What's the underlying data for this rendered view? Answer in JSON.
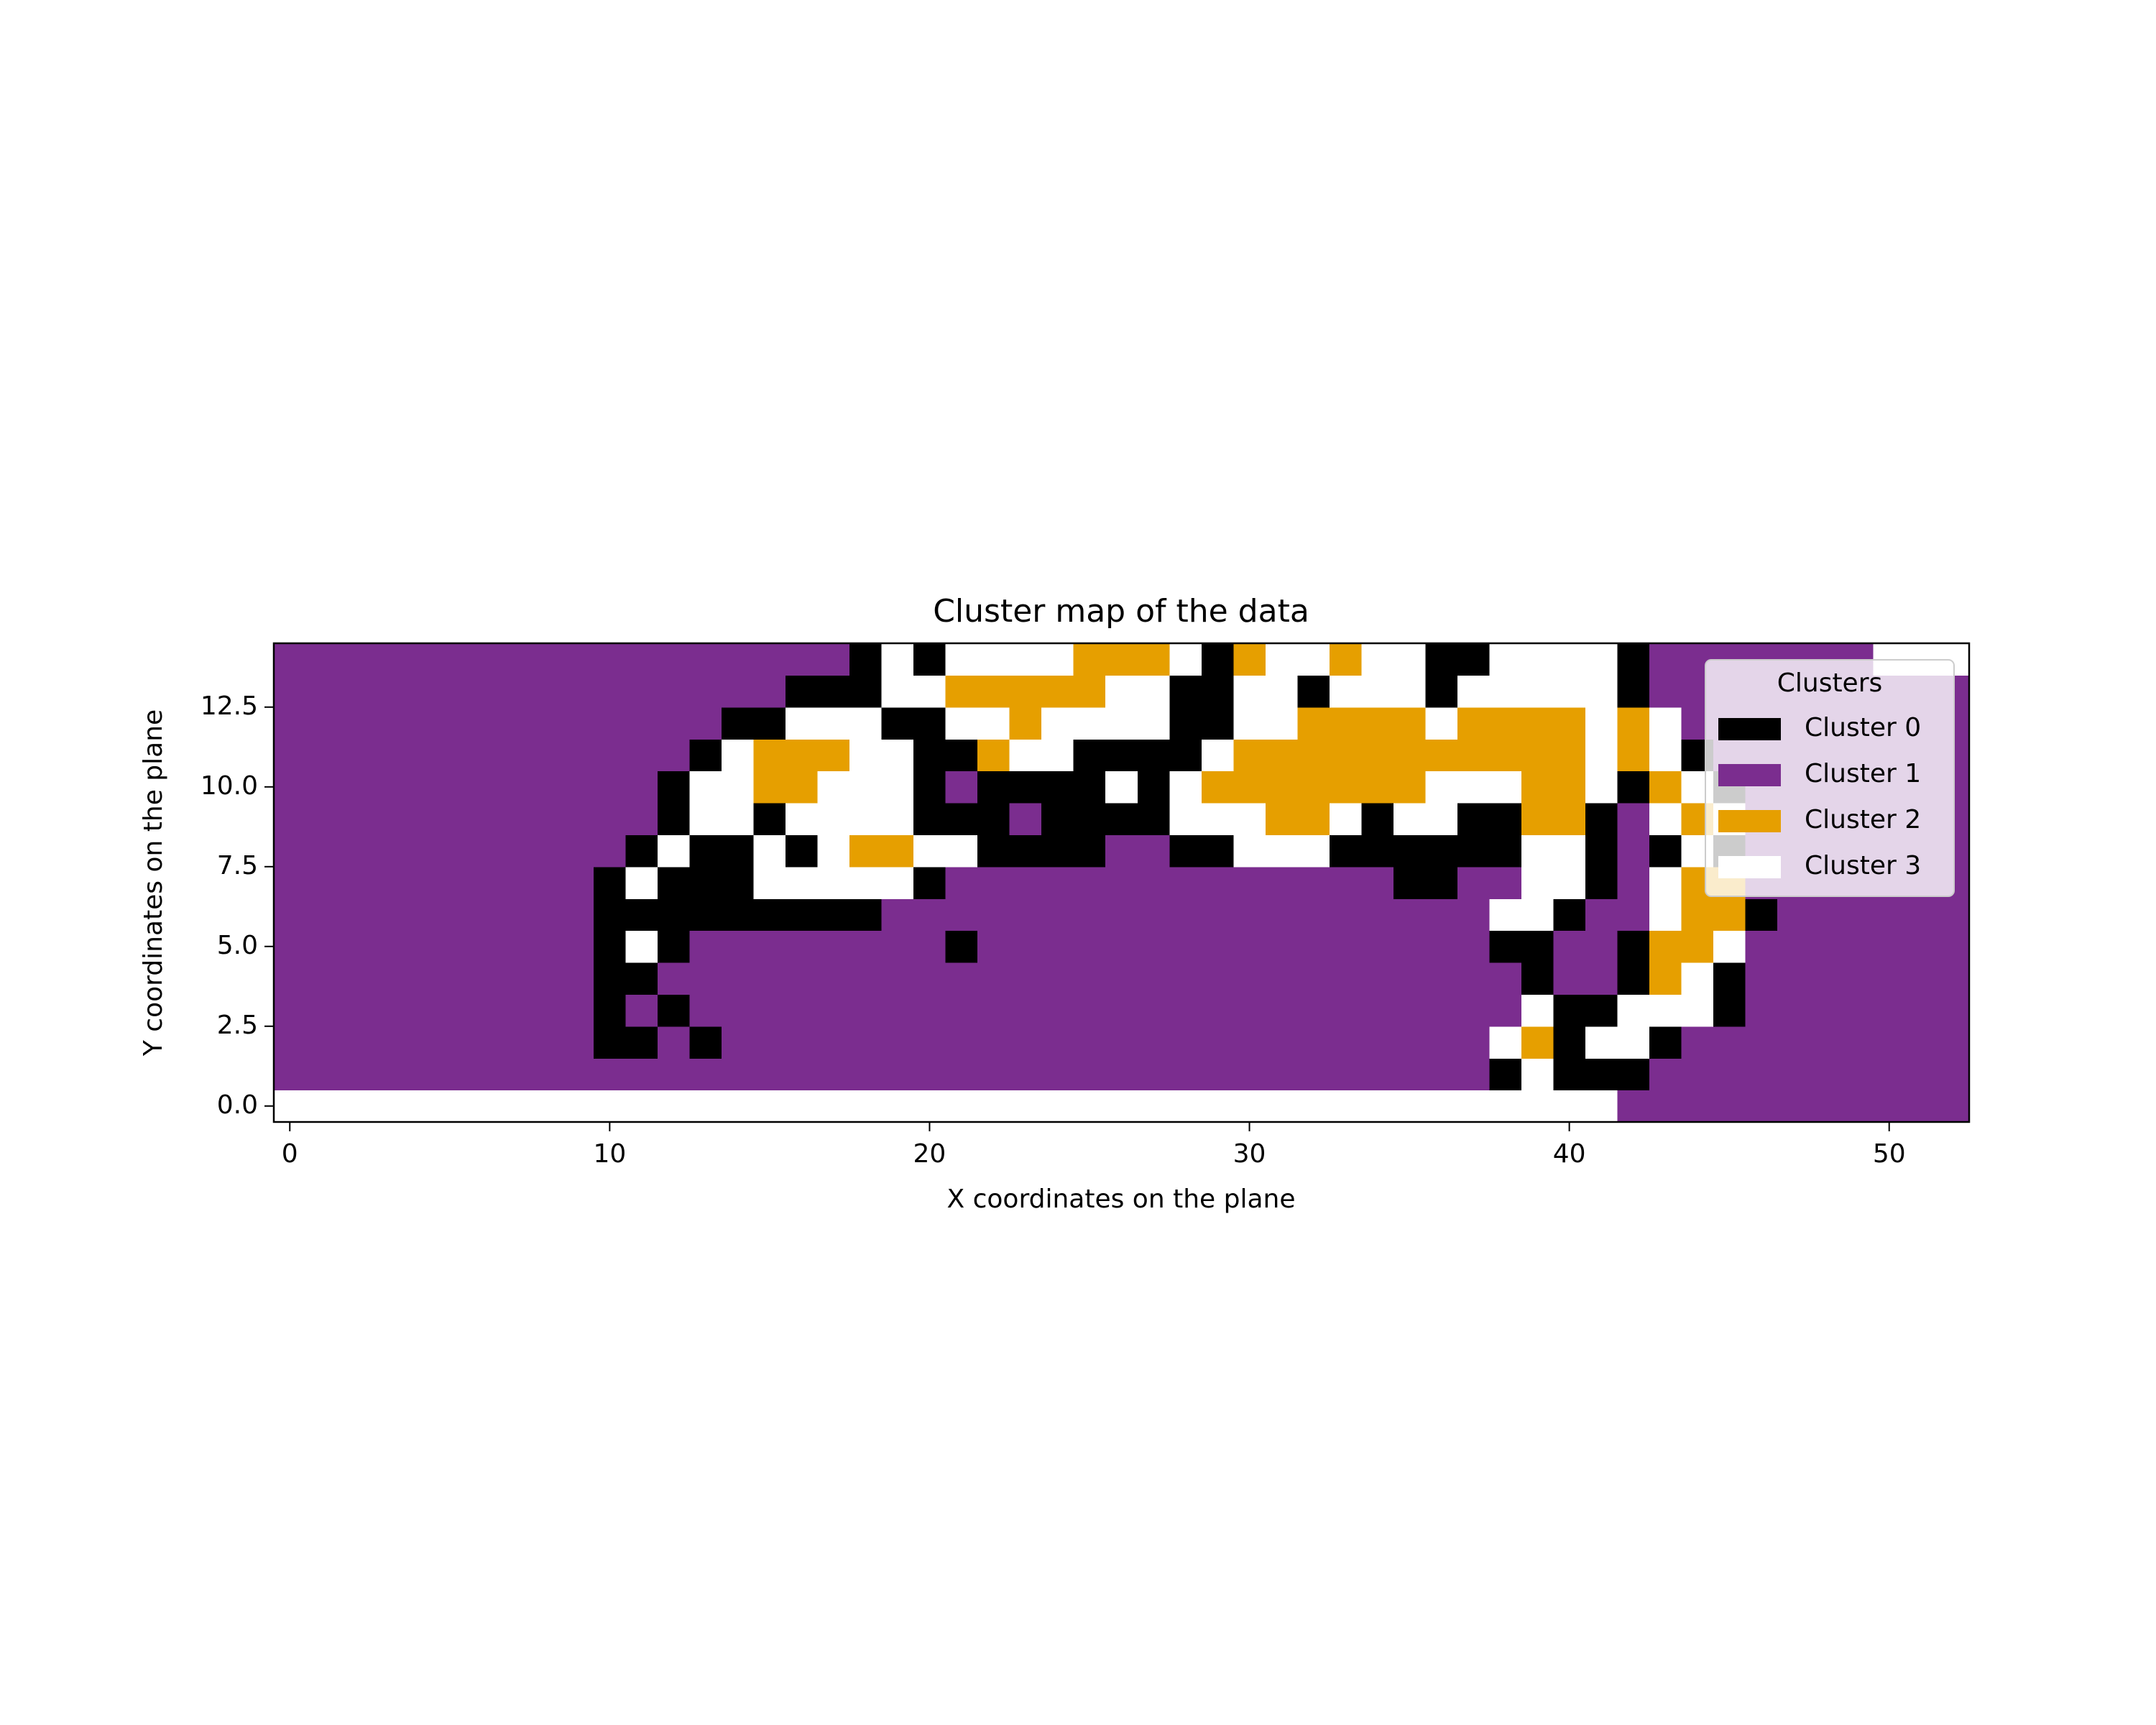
{
  "chart_data": {
    "type": "heatmap",
    "title": "Cluster map of the data",
    "x_label": "X coordinates on the plane",
    "y_label": "Y coordinates on the plane",
    "xlim": [
      -0.5,
      52.5
    ],
    "ylim": [
      -0.5,
      14.5
    ],
    "xticks": [
      0,
      10,
      20,
      30,
      40,
      50
    ],
    "yticks": [
      {
        "value": 0,
        "label": "0.0"
      },
      2.5,
      {
        "value": 5,
        "label": "5.0"
      },
      7.5,
      {
        "value": 10,
        "label": "10.0"
      },
      12.5
    ],
    "legend": {
      "title": "Clusters",
      "position": "upper right"
    },
    "clusters": [
      {
        "name": "Cluster 0",
        "color": "#000000"
      },
      {
        "name": "Cluster 1",
        "color": "#7b2d8f"
      },
      {
        "name": "Cluster 2",
        "color": "#e69f00"
      },
      {
        "name": "Cluster 3",
        "color": "#ffffff"
      }
    ],
    "z": [
      [
        3,
        3,
        3,
        3,
        3,
        3,
        3,
        3,
        3,
        3,
        3,
        3,
        3,
        3,
        3,
        3,
        3,
        3,
        3,
        3,
        3,
        3,
        3,
        3,
        3,
        3,
        3,
        3,
        3,
        3,
        3,
        3,
        3,
        3,
        3,
        3,
        3,
        3,
        3,
        3,
        3,
        3,
        1,
        1,
        1,
        1,
        1,
        1,
        1,
        1,
        1,
        1,
        1
      ],
      [
        1,
        1,
        1,
        1,
        1,
        1,
        1,
        1,
        1,
        1,
        1,
        1,
        1,
        1,
        1,
        1,
        1,
        1,
        1,
        1,
        1,
        1,
        1,
        1,
        1,
        1,
        1,
        1,
        1,
        1,
        1,
        1,
        1,
        1,
        1,
        1,
        1,
        1,
        0,
        3,
        0,
        0,
        0,
        1,
        1,
        1,
        1,
        1,
        1,
        1,
        1,
        1,
        1
      ],
      [
        1,
        1,
        1,
        1,
        1,
        1,
        1,
        1,
        1,
        1,
        0,
        0,
        1,
        0,
        1,
        1,
        1,
        1,
        1,
        1,
        1,
        1,
        1,
        1,
        1,
        1,
        1,
        1,
        1,
        1,
        1,
        1,
        1,
        1,
        1,
        1,
        1,
        1,
        3,
        2,
        0,
        3,
        3,
        0,
        1,
        1,
        1,
        1,
        1,
        1,
        1,
        1,
        1
      ],
      [
        1,
        1,
        1,
        1,
        1,
        1,
        1,
        1,
        1,
        1,
        0,
        1,
        0,
        1,
        1,
        1,
        1,
        1,
        1,
        1,
        1,
        1,
        1,
        1,
        1,
        1,
        1,
        1,
        1,
        1,
        1,
        1,
        1,
        1,
        1,
        1,
        1,
        1,
        1,
        3,
        0,
        0,
        3,
        3,
        3,
        0,
        1,
        1,
        1,
        1,
        1,
        1,
        1
      ],
      [
        1,
        1,
        1,
        1,
        1,
        1,
        1,
        1,
        1,
        1,
        0,
        0,
        1,
        1,
        1,
        1,
        1,
        1,
        1,
        1,
        1,
        1,
        1,
        1,
        1,
        1,
        1,
        1,
        1,
        1,
        1,
        1,
        1,
        1,
        1,
        1,
        1,
        1,
        1,
        0,
        1,
        1,
        0,
        2,
        3,
        0,
        1,
        1,
        1,
        1,
        1,
        1,
        1
      ],
      [
        1,
        1,
        1,
        1,
        1,
        1,
        1,
        1,
        1,
        1,
        0,
        3,
        0,
        1,
        1,
        1,
        1,
        1,
        1,
        1,
        1,
        0,
        1,
        1,
        1,
        1,
        1,
        1,
        1,
        1,
        1,
        1,
        1,
        1,
        1,
        1,
        1,
        1,
        0,
        0,
        1,
        1,
        0,
        2,
        2,
        3,
        1,
        1,
        1,
        1,
        1,
        1,
        1
      ],
      [
        1,
        1,
        1,
        1,
        1,
        1,
        1,
        1,
        1,
        1,
        0,
        0,
        0,
        0,
        0,
        0,
        0,
        0,
        0,
        1,
        1,
        1,
        1,
        1,
        1,
        1,
        1,
        1,
        1,
        1,
        1,
        1,
        1,
        1,
        1,
        1,
        1,
        1,
        3,
        3,
        0,
        1,
        1,
        3,
        2,
        2,
        0,
        1,
        1,
        1,
        1,
        1,
        1
      ],
      [
        1,
        1,
        1,
        1,
        1,
        1,
        1,
        1,
        1,
        1,
        0,
        3,
        0,
        0,
        0,
        3,
        3,
        3,
        3,
        3,
        0,
        1,
        1,
        1,
        1,
        1,
        1,
        1,
        1,
        1,
        1,
        1,
        1,
        1,
        1,
        0,
        0,
        1,
        1,
        3,
        3,
        0,
        1,
        3,
        2,
        2,
        1,
        1,
        1,
        1,
        1,
        1,
        1
      ],
      [
        1,
        1,
        1,
        1,
        1,
        1,
        1,
        1,
        1,
        1,
        1,
        0,
        3,
        0,
        0,
        3,
        0,
        3,
        2,
        2,
        3,
        3,
        0,
        0,
        0,
        0,
        1,
        1,
        0,
        0,
        3,
        3,
        3,
        0,
        0,
        0,
        0,
        0,
        0,
        3,
        3,
        0,
        1,
        0,
        3,
        0,
        1,
        1,
        1,
        1,
        1,
        1,
        1
      ],
      [
        1,
        1,
        1,
        1,
        1,
        1,
        1,
        1,
        1,
        1,
        1,
        1,
        0,
        3,
        3,
        0,
        3,
        3,
        3,
        3,
        0,
        0,
        0,
        1,
        0,
        0,
        0,
        0,
        3,
        3,
        3,
        2,
        2,
        3,
        0,
        3,
        3,
        0,
        0,
        2,
        2,
        0,
        1,
        3,
        2,
        3,
        1,
        1,
        1,
        1,
        1,
        1,
        1
      ],
      [
        1,
        1,
        1,
        1,
        1,
        1,
        1,
        1,
        1,
        1,
        1,
        1,
        0,
        3,
        3,
        2,
        2,
        3,
        3,
        3,
        0,
        1,
        0,
        0,
        0,
        0,
        3,
        0,
        3,
        2,
        2,
        2,
        2,
        2,
        2,
        2,
        3,
        3,
        3,
        2,
        2,
        3,
        0,
        2,
        3,
        0,
        1,
        1,
        1,
        1,
        1,
        1,
        1
      ],
      [
        1,
        1,
        1,
        1,
        1,
        1,
        1,
        1,
        1,
        1,
        1,
        1,
        1,
        0,
        3,
        2,
        2,
        2,
        3,
        3,
        0,
        0,
        2,
        3,
        3,
        0,
        0,
        0,
        0,
        3,
        2,
        2,
        2,
        2,
        2,
        2,
        2,
        2,
        2,
        2,
        2,
        3,
        2,
        3,
        0,
        1,
        1,
        1,
        1,
        1,
        1,
        1,
        1
      ],
      [
        1,
        1,
        1,
        1,
        1,
        1,
        1,
        1,
        1,
        1,
        1,
        1,
        1,
        1,
        0,
        0,
        3,
        3,
        3,
        0,
        0,
        3,
        3,
        2,
        3,
        3,
        3,
        3,
        0,
        0,
        3,
        3,
        2,
        2,
        2,
        2,
        3,
        2,
        2,
        2,
        2,
        3,
        2,
        3,
        1,
        1,
        1,
        1,
        1,
        1,
        1,
        1,
        1
      ],
      [
        1,
        1,
        1,
        1,
        1,
        1,
        1,
        1,
        1,
        1,
        1,
        1,
        1,
        1,
        1,
        1,
        0,
        0,
        0,
        3,
        3,
        2,
        2,
        2,
        2,
        2,
        3,
        3,
        0,
        0,
        3,
        3,
        0,
        3,
        3,
        3,
        0,
        3,
        3,
        3,
        3,
        3,
        0,
        1,
        1,
        1,
        1,
        1,
        1,
        1,
        1,
        1,
        1
      ],
      [
        1,
        1,
        1,
        1,
        1,
        1,
        1,
        1,
        1,
        1,
        1,
        1,
        1,
        1,
        1,
        1,
        1,
        1,
        0,
        3,
        0,
        3,
        3,
        3,
        3,
        2,
        2,
        2,
        3,
        0,
        2,
        3,
        3,
        2,
        3,
        3,
        0,
        0,
        3,
        3,
        3,
        3,
        0,
        1,
        1,
        1,
        1,
        1,
        1,
        1,
        3,
        3,
        3
      ]
    ]
  }
}
